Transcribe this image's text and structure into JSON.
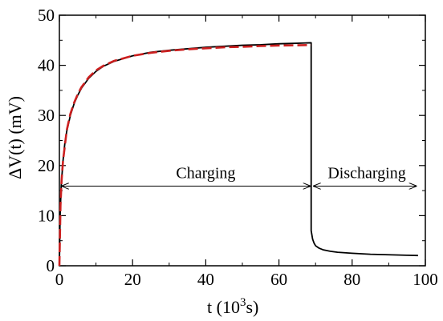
{
  "chart_data": {
    "type": "line",
    "xlabel_parts": {
      "main": "t   (10",
      "exp": "3",
      "unit": "s)"
    },
    "ylabel_parts": {
      "main": "ΔV(t)   (mV)"
    },
    "xlim": [
      0,
      100
    ],
    "ylim": [
      0,
      50
    ],
    "xticks": [
      "0",
      "20",
      "40",
      "60",
      "80",
      "100"
    ],
    "yticks": [
      "0",
      "10",
      "20",
      "30",
      "40",
      "50"
    ],
    "grid": false,
    "series": [
      {
        "style": "solid",
        "color": "#000000",
        "x": [
          0,
          0.2,
          0.5,
          1,
          1.5,
          2,
          3,
          4,
          5,
          6,
          8,
          10,
          12,
          15,
          20,
          25,
          30,
          35,
          40,
          45,
          50,
          55,
          60,
          65,
          68.8,
          68.8,
          69.2,
          69.6,
          70,
          71,
          72,
          74,
          76,
          80,
          85,
          90,
          95,
          98
        ],
        "y": [
          0,
          10,
          16,
          21,
          24.5,
          26.8,
          30,
          32.3,
          34,
          35.4,
          37.4,
          38.8,
          39.8,
          40.8,
          41.9,
          42.6,
          43.0,
          43.3,
          43.6,
          43.8,
          44.0,
          44.1,
          44.3,
          44.4,
          44.5,
          7.0,
          5.3,
          4.5,
          4.0,
          3.5,
          3.2,
          2.9,
          2.7,
          2.5,
          2.3,
          2.2,
          2.1,
          2.05
        ]
      },
      {
        "style": "dashed",
        "color": "#cc1f1f",
        "x": [
          0,
          0.3,
          0.6,
          1,
          2,
          3,
          4,
          5,
          6,
          8,
          10,
          12,
          15,
          20,
          25,
          30,
          35,
          40,
          45,
          50,
          55,
          60,
          65,
          68.8
        ],
        "y": [
          0,
          12,
          17,
          21,
          27,
          30.3,
          32.5,
          34.2,
          35.6,
          37.6,
          39.0,
          39.9,
          40.9,
          41.9,
          42.5,
          42.9,
          43.2,
          43.4,
          43.6,
          43.7,
          43.85,
          43.95,
          44.0,
          44.05
        ]
      }
    ],
    "annotations": [
      {
        "text": "Charging",
        "x": 40,
        "y": 17.5,
        "arrow": [
          0.7,
          68.5
        ],
        "arrow_y": 15.9
      },
      {
        "text": "Discharging",
        "x": 84,
        "y": 17.5,
        "arrow": [
          69.5,
          97.5
        ],
        "arrow_y": 15.9
      }
    ]
  }
}
